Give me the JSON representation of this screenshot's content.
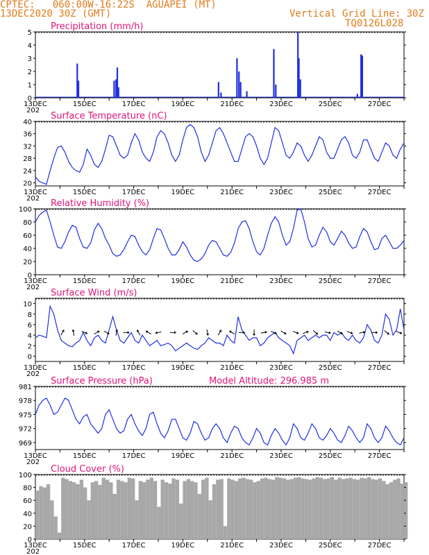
{
  "header": {
    "line1": "CPTEC:   060:00W-16:22S  AGUAPEI (MT)",
    "line2": "13DEC2020 30Z (GMT)",
    "right1": "Vertical Grid Line: 30Z",
    "right2": "TQ0126L028"
  },
  "colors": {
    "header": "#e07b1a",
    "title": "#e0147a",
    "line": "#1f2fe0",
    "cloud": "#a8a8a8"
  },
  "x_axis": {
    "labels": [
      "13DEC",
      "15DEC",
      "17DEC",
      "19DEC",
      "21DEC",
      "23DEC",
      "25DEC",
      "27DEC"
    ],
    "year_stub": "202",
    "day_range": [
      0,
      15
    ]
  },
  "chart_data": [
    {
      "type": "bar",
      "title": "Precipitation (mm/h)",
      "ylim": [
        0,
        5
      ],
      "yticks": [
        0,
        1,
        2,
        3,
        4,
        5
      ],
      "bars": [
        {
          "day": 1.7,
          "value": 2.6
        },
        {
          "day": 1.75,
          "value": 1.3
        },
        {
          "day": 3.2,
          "value": 1.3
        },
        {
          "day": 3.28,
          "value": 1.4
        },
        {
          "day": 3.33,
          "value": 2.3
        },
        {
          "day": 3.38,
          "value": 0.8
        },
        {
          "day": 7.45,
          "value": 1.2
        },
        {
          "day": 7.55,
          "value": 0.4
        },
        {
          "day": 8.2,
          "value": 3.0
        },
        {
          "day": 8.28,
          "value": 2.0
        },
        {
          "day": 8.35,
          "value": 1.2
        },
        {
          "day": 8.6,
          "value": 0.5
        },
        {
          "day": 9.7,
          "value": 3.7
        },
        {
          "day": 9.78,
          "value": 1.0
        },
        {
          "day": 10.68,
          "value": 5.0
        },
        {
          "day": 10.72,
          "value": 3.0
        },
        {
          "day": 10.78,
          "value": 1.4
        },
        {
          "day": 13.25,
          "value": 3.3
        },
        {
          "day": 13.3,
          "value": 3.2
        },
        {
          "day": 13.1,
          "value": 0.3
        }
      ]
    },
    {
      "type": "line",
      "title": "Surface Temperature (nC)",
      "ylim": [
        19,
        40
      ],
      "yticks": [
        20,
        24,
        28,
        32,
        36,
        40
      ],
      "x": [
        0,
        0.15,
        0.3,
        0.45,
        0.6,
        0.75,
        0.9,
        1.05,
        1.2,
        1.35,
        1.5,
        1.65,
        1.8,
        1.95,
        2.1,
        2.25,
        2.4,
        2.55,
        2.7,
        2.85,
        3.0,
        3.15,
        3.3,
        3.45,
        3.6,
        3.75,
        3.9,
        4.05,
        4.2,
        4.35,
        4.5,
        4.65,
        4.8,
        4.95,
        5.1,
        5.25,
        5.4,
        5.55,
        5.7,
        5.85,
        6.0,
        6.15,
        6.3,
        6.45,
        6.6,
        6.75,
        6.9,
        7.05,
        7.2,
        7.35,
        7.5,
        7.65,
        7.8,
        7.95,
        8.1,
        8.25,
        8.4,
        8.55,
        8.7,
        8.85,
        9.0,
        9.15,
        9.3,
        9.45,
        9.6,
        9.75,
        9.9,
        10.05,
        10.2,
        10.35,
        10.5,
        10.65,
        10.8,
        10.95,
        11.1,
        11.25,
        11.4,
        11.55,
        11.7,
        11.85,
        12.0,
        12.15,
        12.3,
        12.45,
        12.6,
        12.75,
        12.9,
        13.05,
        13.2,
        13.35,
        13.5,
        13.65,
        13.8,
        13.95,
        14.1,
        14.25,
        14.4,
        14.55,
        14.7,
        14.85,
        15.0
      ],
      "y": [
        22,
        20.5,
        20,
        19.5,
        24,
        28,
        31.5,
        32,
        30,
        27,
        25,
        24,
        23.5,
        26,
        31,
        29,
        26,
        25,
        27,
        31,
        35.5,
        35,
        32,
        29,
        28,
        29,
        33,
        36,
        34,
        30,
        28,
        27,
        30,
        35,
        37,
        36,
        33,
        29,
        27,
        29,
        34,
        38,
        39,
        38,
        35,
        30,
        27,
        29,
        33,
        37,
        38,
        36,
        33,
        30,
        27,
        27,
        31,
        35,
        36,
        35,
        32,
        28,
        26,
        28,
        33,
        38,
        37,
        33,
        29,
        28,
        30,
        33,
        32,
        29,
        27,
        29,
        32,
        35,
        34,
        30,
        28,
        28,
        31,
        34,
        35,
        33,
        29,
        28,
        30,
        34,
        34,
        31,
        28,
        27,
        30,
        33,
        32,
        29,
        28,
        31,
        33
      ]
    },
    {
      "type": "line",
      "title": "Relative Humidity (%)",
      "ylim": [
        0,
        100
      ],
      "yticks": [
        0,
        20,
        40,
        60,
        80,
        100
      ],
      "x": [
        0,
        0.15,
        0.3,
        0.45,
        0.6,
        0.75,
        0.9,
        1.05,
        1.2,
        1.35,
        1.5,
        1.65,
        1.8,
        1.95,
        2.1,
        2.25,
        2.4,
        2.55,
        2.7,
        2.85,
        3.0,
        3.15,
        3.3,
        3.45,
        3.6,
        3.75,
        3.9,
        4.05,
        4.2,
        4.35,
        4.5,
        4.65,
        4.8,
        4.95,
        5.1,
        5.25,
        5.4,
        5.55,
        5.7,
        5.85,
        6.0,
        6.15,
        6.3,
        6.45,
        6.6,
        6.75,
        6.9,
        7.05,
        7.2,
        7.35,
        7.5,
        7.65,
        7.8,
        7.95,
        8.1,
        8.25,
        8.4,
        8.55,
        8.7,
        8.85,
        9.0,
        9.15,
        9.3,
        9.45,
        9.6,
        9.75,
        9.9,
        10.05,
        10.2,
        10.35,
        10.5,
        10.65,
        10.8,
        10.95,
        11.1,
        11.25,
        11.4,
        11.55,
        11.7,
        11.85,
        12.0,
        12.15,
        12.3,
        12.45,
        12.6,
        12.75,
        12.9,
        13.05,
        13.2,
        13.35,
        13.5,
        13.65,
        13.8,
        13.95,
        14.1,
        14.25,
        14.4,
        14.55,
        14.7,
        14.85,
        15.0
      ],
      "y": [
        80,
        90,
        95,
        98,
        80,
        60,
        42,
        40,
        50,
        65,
        75,
        72,
        55,
        42,
        40,
        48,
        68,
        78,
        70,
        55,
        45,
        32,
        28,
        30,
        38,
        50,
        60,
        58,
        45,
        35,
        30,
        38,
        55,
        70,
        68,
        55,
        40,
        30,
        30,
        38,
        50,
        42,
        30,
        22,
        20,
        24,
        32,
        45,
        52,
        50,
        40,
        30,
        28,
        34,
        48,
        70,
        80,
        82,
        70,
        50,
        35,
        30,
        40,
        60,
        78,
        88,
        80,
        60,
        45,
        50,
        70,
        98,
        100,
        80,
        55,
        42,
        45,
        60,
        72,
        65,
        50,
        45,
        55,
        66,
        60,
        48,
        40,
        42,
        58,
        70,
        65,
        50,
        38,
        40,
        55,
        60,
        50,
        40,
        40,
        45,
        52
      ]
    },
    {
      "type": "line",
      "title": "Surface Wind (m/s)",
      "ylim": [
        -1,
        11
      ],
      "yticks": [
        0,
        2,
        4,
        6,
        8,
        10
      ],
      "x": [
        0,
        0.15,
        0.3,
        0.45,
        0.6,
        0.75,
        0.9,
        1.05,
        1.2,
        1.35,
        1.5,
        1.65,
        1.8,
        1.95,
        2.1,
        2.25,
        2.4,
        2.55,
        2.7,
        2.85,
        3.0,
        3.15,
        3.3,
        3.45,
        3.6,
        3.75,
        3.9,
        4.05,
        4.2,
        4.35,
        4.5,
        4.65,
        4.8,
        4.95,
        5.1,
        5.25,
        5.4,
        5.55,
        5.7,
        5.85,
        6.0,
        6.15,
        6.3,
        6.45,
        6.6,
        6.75,
        6.9,
        7.05,
        7.2,
        7.35,
        7.5,
        7.65,
        7.8,
        7.95,
        8.1,
        8.25,
        8.4,
        8.55,
        8.7,
        8.85,
        9.0,
        9.15,
        9.3,
        9.45,
        9.6,
        9.75,
        9.9,
        10.05,
        10.2,
        10.35,
        10.5,
        10.65,
        10.8,
        10.95,
        11.1,
        11.25,
        11.4,
        11.55,
        11.7,
        11.85,
        12.0,
        12.15,
        12.3,
        12.45,
        12.6,
        12.75,
        12.9,
        13.05,
        13.2,
        13.35,
        13.5,
        13.65,
        13.8,
        13.95,
        14.1,
        14.25,
        14.4,
        14.55,
        14.7,
        14.85,
        15.0
      ],
      "y": [
        3.5,
        4,
        3.8,
        3.5,
        9.5,
        8,
        5,
        3,
        2.5,
        2,
        1.8,
        2.5,
        3,
        4.5,
        3,
        2,
        3.5,
        4,
        3,
        2.5,
        5,
        7.5,
        5,
        3,
        2.5,
        3.5,
        4.5,
        3,
        2.5,
        4,
        3,
        2,
        2.5,
        3,
        2,
        2.2,
        2.5,
        2,
        1,
        1.5,
        2,
        2.5,
        2,
        1.5,
        1.3,
        2,
        2.5,
        3.5,
        3,
        2.5,
        2.5,
        2,
        4,
        3,
        2.5,
        7.5,
        5,
        4,
        3,
        3.5,
        3.5,
        2,
        2.5,
        3.5,
        4,
        4.5,
        3.5,
        3,
        2.5,
        2,
        0.5,
        3,
        3.5,
        4,
        3,
        3.5,
        4,
        3.5,
        4,
        4,
        3,
        4.5,
        4,
        4.5,
        3.5,
        3,
        4,
        3,
        2.5,
        3.5,
        6,
        5,
        3,
        2.5,
        4,
        8,
        7,
        4,
        5,
        9,
        5
      ]
    },
    {
      "type": "line",
      "title": "Surface Pressure (hPa)",
      "annotation": "Model Altitude: 296.985 m",
      "ylim": [
        967.5,
        981
      ],
      "yticks": [
        969,
        972,
        975,
        978,
        981
      ],
      "x": [
        0,
        0.15,
        0.3,
        0.45,
        0.6,
        0.75,
        0.9,
        1.05,
        1.2,
        1.35,
        1.5,
        1.65,
        1.8,
        1.95,
        2.1,
        2.25,
        2.4,
        2.55,
        2.7,
        2.85,
        3.0,
        3.15,
        3.3,
        3.45,
        3.6,
        3.75,
        3.9,
        4.05,
        4.2,
        4.35,
        4.5,
        4.65,
        4.8,
        4.95,
        5.1,
        5.25,
        5.4,
        5.55,
        5.7,
        5.85,
        6.0,
        6.15,
        6.3,
        6.45,
        6.6,
        6.75,
        6.9,
        7.05,
        7.2,
        7.35,
        7.5,
        7.65,
        7.8,
        7.95,
        8.1,
        8.25,
        8.4,
        8.55,
        8.7,
        8.85,
        9.0,
        9.15,
        9.3,
        9.45,
        9.6,
        9.75,
        9.9,
        10.05,
        10.2,
        10.35,
        10.5,
        10.65,
        10.8,
        10.95,
        11.1,
        11.25,
        11.4,
        11.55,
        11.7,
        11.85,
        12.0,
        12.15,
        12.3,
        12.45,
        12.6,
        12.75,
        12.9,
        13.05,
        13.2,
        13.35,
        13.5,
        13.65,
        13.8,
        13.95,
        14.1,
        14.25,
        14.4,
        14.55,
        14.7,
        14.85,
        15.0
      ],
      "y": [
        975,
        977,
        978,
        978.5,
        977,
        975,
        975.5,
        977,
        978.5,
        978,
        976,
        974,
        973,
        974.5,
        975,
        973,
        972,
        971,
        972,
        975,
        976,
        974,
        972,
        971,
        971.5,
        974,
        975,
        973,
        971.5,
        970.5,
        972,
        975,
        975.5,
        973,
        971,
        970,
        971.5,
        974,
        974,
        972,
        970,
        969.5,
        971,
        973.5,
        973,
        971,
        969.5,
        970,
        972,
        973,
        972,
        970,
        969,
        971,
        972.5,
        972,
        970,
        969,
        968.5,
        970,
        972,
        971,
        969,
        968.5,
        970.5,
        972,
        971,
        969.5,
        968.5,
        970,
        973,
        972,
        970,
        969.5,
        971,
        973,
        972,
        970,
        969.5,
        970.5,
        972,
        971,
        969.5,
        969,
        970.5,
        972.5,
        971.5,
        970,
        969,
        970,
        973,
        972,
        970,
        969,
        970,
        972.5,
        971.5,
        970,
        969,
        968.5,
        970
      ]
    },
    {
      "type": "area",
      "title": "Cloud Cover (%)",
      "ylim": [
        0,
        100
      ],
      "yticks": [
        0,
        20,
        40,
        60,
        80,
        100
      ],
      "x": [
        0,
        0.15,
        0.3,
        0.45,
        0.6,
        0.75,
        0.9,
        1.05,
        1.2,
        1.35,
        1.5,
        1.65,
        1.8,
        1.95,
        2.1,
        2.25,
        2.4,
        2.55,
        2.7,
        2.85,
        3.0,
        3.15,
        3.3,
        3.45,
        3.6,
        3.75,
        3.9,
        4.05,
        4.2,
        4.35,
        4.5,
        4.65,
        4.8,
        4.95,
        5.1,
        5.25,
        5.4,
        5.55,
        5.7,
        5.85,
        6.0,
        6.15,
        6.3,
        6.45,
        6.6,
        6.75,
        6.9,
        7.05,
        7.2,
        7.35,
        7.5,
        7.65,
        7.8,
        7.95,
        8.1,
        8.25,
        8.4,
        8.55,
        8.7,
        8.85,
        9.0,
        9.15,
        9.3,
        9.45,
        9.6,
        9.75,
        9.9,
        10.05,
        10.2,
        10.35,
        10.5,
        10.65,
        10.8,
        10.95,
        11.1,
        11.25,
        11.4,
        11.55,
        11.7,
        11.85,
        12.0,
        12.15,
        12.3,
        12.45,
        12.6,
        12.75,
        12.9,
        13.05,
        13.2,
        13.35,
        13.5,
        13.65,
        13.8,
        13.95,
        14.1,
        14.25,
        14.4,
        14.55,
        14.7,
        14.85,
        15.0
      ],
      "y": [
        75,
        82,
        80,
        85,
        60,
        35,
        10,
        95,
        93,
        90,
        88,
        85,
        92,
        80,
        60,
        88,
        90,
        84,
        95,
        92,
        88,
        70,
        92,
        90,
        88,
        95,
        94,
        60,
        90,
        88,
        92,
        95,
        90,
        50,
        92,
        88,
        86,
        94,
        92,
        55,
        90,
        93,
        90,
        88,
        70,
        92,
        95,
        60,
        85,
        92,
        93,
        20,
        94,
        92,
        90,
        94,
        95,
        93,
        92,
        88,
        90,
        94,
        95,
        93,
        92,
        96,
        95,
        94,
        92,
        93,
        95,
        96,
        94,
        93,
        92,
        94,
        96,
        95,
        93,
        94,
        96,
        92,
        95,
        93,
        94,
        95,
        93,
        92,
        95,
        94,
        96,
        93,
        92,
        94,
        90,
        85,
        88,
        92,
        94,
        86,
        88
      ]
    }
  ],
  "wind_arrows": [
    {
      "day": 1.1,
      "dir": -60
    },
    {
      "day": 1.55,
      "dir": -100
    },
    {
      "day": 2.0,
      "dir": 20
    },
    {
      "day": 2.5,
      "dir": -30
    },
    {
      "day": 2.9,
      "dir": 30
    },
    {
      "day": 3.3,
      "dir": -80
    },
    {
      "day": 3.7,
      "dir": 0
    },
    {
      "day": 4.2,
      "dir": -120
    },
    {
      "day": 4.6,
      "dir": -150
    },
    {
      "day": 5.0,
      "dir": 170
    },
    {
      "day": 5.6,
      "dir": 0
    },
    {
      "day": 6.1,
      "dir": -30
    },
    {
      "day": 6.5,
      "dir": 40
    },
    {
      "day": 7.0,
      "dir": 80
    },
    {
      "day": 7.5,
      "dir": -60
    },
    {
      "day": 8.0,
      "dir": -150
    },
    {
      "day": 8.4,
      "dir": 0
    },
    {
      "day": 8.9,
      "dir": 90
    },
    {
      "day": 9.3,
      "dir": -10
    },
    {
      "day": 9.7,
      "dir": 20
    },
    {
      "day": 10.1,
      "dir": 30
    },
    {
      "day": 10.6,
      "dir": 20
    },
    {
      "day": 11.0,
      "dir": -20
    },
    {
      "day": 11.4,
      "dir": 40
    },
    {
      "day": 11.9,
      "dir": 10
    },
    {
      "day": 12.4,
      "dir": 30
    },
    {
      "day": 12.8,
      "dir": 20
    },
    {
      "day": 13.3,
      "dir": -10
    },
    {
      "day": 13.8,
      "dir": 0
    },
    {
      "day": 14.3,
      "dir": 40
    },
    {
      "day": 14.8,
      "dir": 20
    }
  ]
}
